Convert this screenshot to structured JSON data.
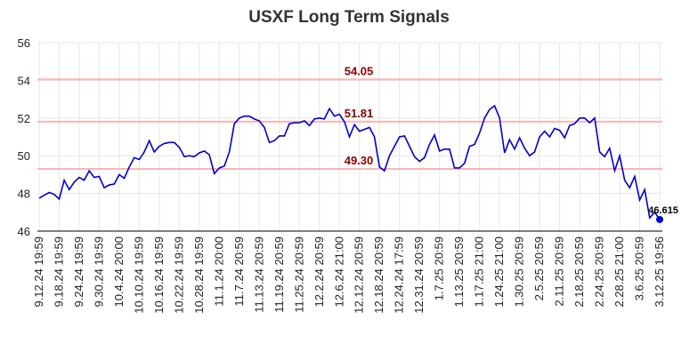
{
  "chart_data": {
    "type": "line",
    "title": "USXF Long Term Signals",
    "categories": [
      "9.12.24 19:59",
      null,
      null,
      null,
      "9.18.24 19:59",
      null,
      null,
      null,
      "9.24.24 19:59",
      null,
      null,
      null,
      "9.30.24 19:59",
      null,
      null,
      null,
      "10.4.24 20:00",
      null,
      null,
      null,
      "10.10.24 19:59",
      null,
      null,
      null,
      "10.16.24 19:59",
      null,
      null,
      null,
      "10.22.24 19:59",
      null,
      null,
      null,
      "10.28.24 19:59",
      null,
      null,
      null,
      "11.1.24 20:00",
      null,
      null,
      null,
      "11.7.24 20:59",
      null,
      null,
      null,
      "11.13.24 20:59",
      null,
      null,
      null,
      "11.19.24 20:59",
      null,
      null,
      null,
      "11.25.24 20:59",
      null,
      null,
      null,
      "12.2.24 20:59",
      null,
      null,
      null,
      "12.6.24 21:00",
      null,
      null,
      null,
      "12.12.24 20:59",
      null,
      null,
      null,
      "12.18.24 20:59",
      null,
      null,
      null,
      "12.24.24 17:59",
      null,
      null,
      null,
      "12.31.24 20:59",
      null,
      null,
      null,
      "1.7.25 20:59",
      null,
      null,
      null,
      "1.13.25 20:59",
      null,
      null,
      null,
      "1.17.25 21:00",
      null,
      null,
      null,
      "1.24.25 21:00",
      null,
      null,
      null,
      "1.30.25 20:59",
      null,
      null,
      null,
      "2.5.25 20:59",
      null,
      null,
      null,
      "2.11.25 20:59",
      null,
      null,
      null,
      "2.18.25 20:59",
      null,
      null,
      null,
      "2.24.25 20:59",
      null,
      null,
      null,
      "2.28.25 21:00",
      null,
      null,
      null,
      "3.6.25 20:59",
      null,
      null,
      null,
      "3.12.25 19:56"
    ],
    "values": [
      47.75,
      47.9,
      48.05,
      47.95,
      47.7,
      48.7,
      48.2,
      48.6,
      48.85,
      48.7,
      49.2,
      48.85,
      48.9,
      48.3,
      48.45,
      48.5,
      49.0,
      48.8,
      49.4,
      49.9,
      49.8,
      50.2,
      50.8,
      50.2,
      50.5,
      50.65,
      50.7,
      50.7,
      50.45,
      49.95,
      50.0,
      49.95,
      50.15,
      50.25,
      50.05,
      49.05,
      49.35,
      49.45,
      50.2,
      51.7,
      52.0,
      52.1,
      52.1,
      51.95,
      51.85,
      51.5,
      50.7,
      50.8,
      51.05,
      51.05,
      51.7,
      51.75,
      51.75,
      51.85,
      51.6,
      51.95,
      52.0,
      51.95,
      52.5,
      52.1,
      52.2,
      51.8,
      51.0,
      51.65,
      51.3,
      51.4,
      51.5,
      51.0,
      49.4,
      49.2,
      50.0,
      50.5,
      51.0,
      51.05,
      50.5,
      49.95,
      49.7,
      49.9,
      50.6,
      51.1,
      50.25,
      50.35,
      50.35,
      49.35,
      49.35,
      49.6,
      50.5,
      50.6,
      51.2,
      52.0,
      52.45,
      52.65,
      52.0,
      50.15,
      50.85,
      50.35,
      50.95,
      50.4,
      50.0,
      50.2,
      51.0,
      51.3,
      51.0,
      51.45,
      51.35,
      50.95,
      51.6,
      51.7,
      52.0,
      52.0,
      51.75,
      52.0,
      50.2,
      49.95,
      50.4,
      49.2,
      50.0,
      48.7,
      48.3,
      48.9,
      47.65,
      48.2,
      46.7,
      47.0,
      46.615
    ],
    "color": "#0000cc",
    "ylim": [
      46,
      56
    ],
    "yticks": [
      46,
      48,
      50,
      52,
      54,
      56
    ],
    "grid": true,
    "hlines": [
      54.05,
      51.81,
      {
        "value": 49.3,
        "label": "49.30"
      }
    ],
    "hline_color": "#ffb3b3",
    "hline_label_color": "#8b0000"
  }
}
